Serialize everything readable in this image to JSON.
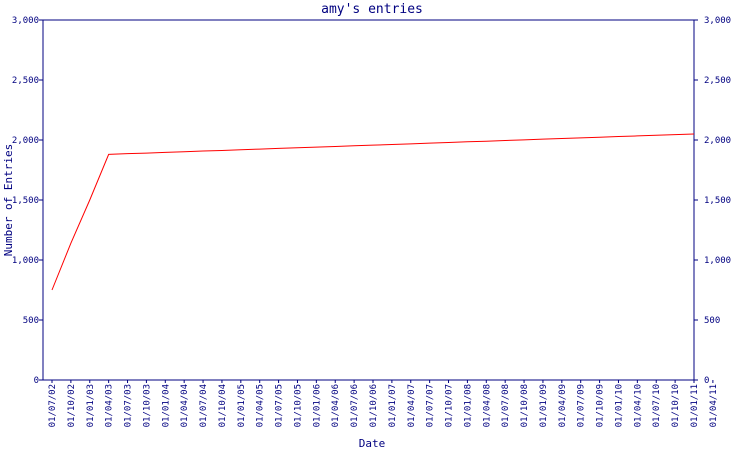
{
  "chart_data": {
    "type": "line",
    "title": "amy's entries",
    "xlabel": "Date",
    "ylabel": "Number of Entries",
    "categories": [
      "01/07/02",
      "01/10/02",
      "01/01/03",
      "01/04/03",
      "01/07/03",
      "01/10/03",
      "01/01/04",
      "01/04/04",
      "01/07/04",
      "01/10/04",
      "01/01/05",
      "01/04/05",
      "01/07/05",
      "01/10/05",
      "01/01/06",
      "01/04/06",
      "01/07/06",
      "01/10/06",
      "01/01/07",
      "01/04/07",
      "01/07/07",
      "01/10/07",
      "01/01/08",
      "01/04/08",
      "01/07/08",
      "01/10/08",
      "01/01/09",
      "01/04/09",
      "01/07/09",
      "01/10/09",
      "01/01/10",
      "01/04/10",
      "01/07/10",
      "01/10/10",
      "01/01/11",
      "01/04/11"
    ],
    "series": [
      {
        "name": "amy",
        "color": "#ff0000",
        "values": [
          750,
          1140,
          1500,
          1880,
          1886,
          1891,
          1897,
          1902,
          1908,
          1913,
          1919,
          1924,
          1930,
          1935,
          1941,
          1946,
          1952,
          1957,
          1963,
          1968,
          1974,
          1979,
          1985,
          1990,
          1996,
          2001,
          2007,
          2012,
          2018,
          2023,
          2029,
          2034,
          2040,
          2045,
          2050,
          null
        ]
      }
    ],
    "ylim": [
      0,
      3000
    ],
    "yticks": [
      0,
      500,
      {
        "value": 1000,
        "label": "1,000"
      },
      {
        "value": 1500,
        "label": "1,500"
      },
      {
        "value": 2000,
        "label": "2,000"
      },
      {
        "value": 2500,
        "label": "2,500"
      },
      {
        "value": 3000,
        "label": "3,000"
      }
    ],
    "axis_color": "#000080"
  }
}
